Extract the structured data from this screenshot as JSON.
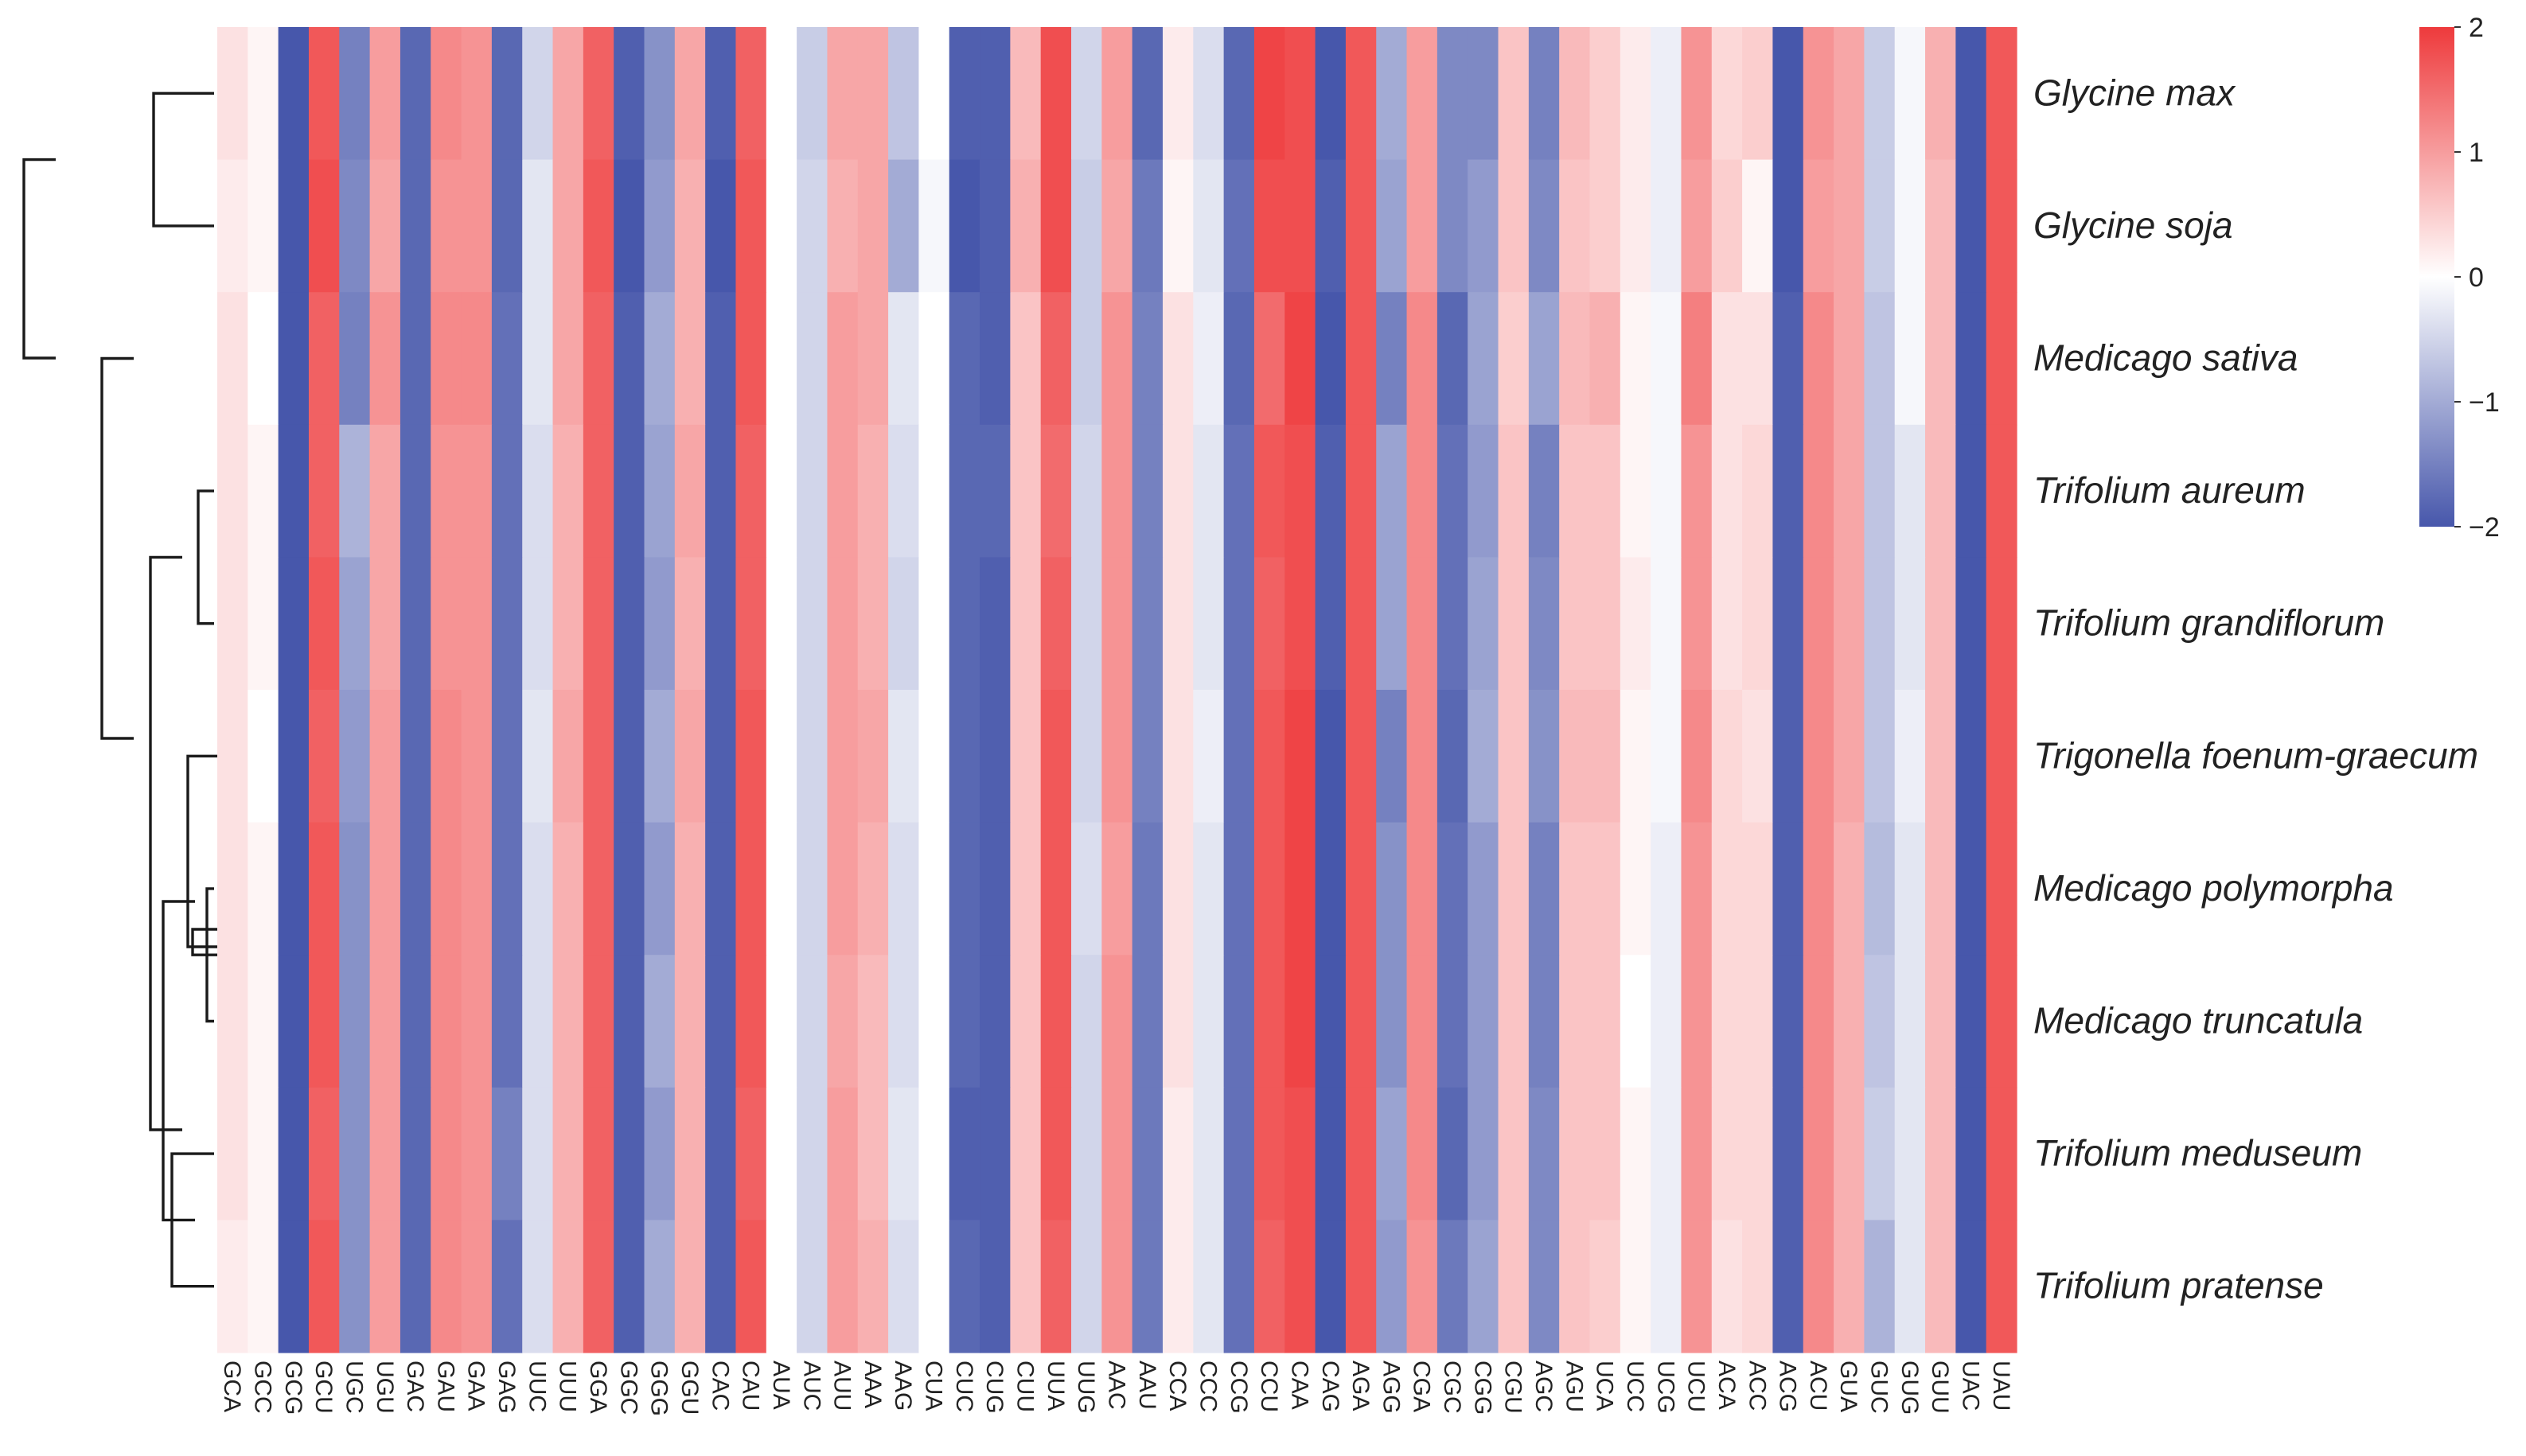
{
  "chart_data": {
    "type": "heatmap",
    "title": "",
    "xlabel": "",
    "ylabel": "",
    "columns": [
      "GCA",
      "GCC",
      "GCG",
      "GCU",
      "UGC",
      "UGU",
      "GAC",
      "GAU",
      "GAA",
      "GAG",
      "UUC",
      "UUU",
      "GGA",
      "GGC",
      "GGG",
      "GGU",
      "CAC",
      "CAU",
      "AUA",
      "AUC",
      "AUU",
      "AAA",
      "AAG",
      "CUA",
      "CUC",
      "CUG",
      "CUU",
      "UUA",
      "UUG",
      "AAC",
      "AAU",
      "CCA",
      "CCC",
      "CCG",
      "CCU",
      "CAA",
      "CAG",
      "AGA",
      "AGG",
      "CGA",
      "CGC",
      "CGG",
      "CGU",
      "AGC",
      "AGU",
      "UCA",
      "UCC",
      "UCG",
      "UCU",
      "ACA",
      "ACC",
      "ACG",
      "ACU",
      "GUA",
      "GUC",
      "GUG",
      "GUU",
      "UAC",
      "UAU"
    ],
    "rows": [
      "Glycine max",
      "Glycine soja",
      "Medicago sativa",
      "Trifolium aureum",
      "Trifolium grandiflorum",
      "Trigonella foenum-graecum",
      "Medicago polymorpha",
      "Medicago truncatula",
      "Trifolium meduseum",
      "Trifolium pratense"
    ],
    "values": [
      [
        0.3,
        0.1,
        -2.0,
        1.7,
        -1.5,
        1.0,
        -1.8,
        1.2,
        1.1,
        -1.8,
        -0.5,
        0.9,
        1.6,
        -1.9,
        -1.3,
        0.9,
        -1.9,
        1.6,
        0.0,
        -0.6,
        0.9,
        0.9,
        -0.7,
        0.0,
        -1.9,
        -1.9,
        0.7,
        1.8,
        -0.5,
        1.0,
        -1.8,
        0.2,
        -0.4,
        -1.8,
        1.9,
        1.8,
        -2.0,
        1.7,
        -1.0,
        1.0,
        -1.4,
        -1.4,
        0.6,
        -1.5,
        0.7,
        0.5,
        0.2,
        -0.2,
        1.1,
        0.4,
        0.5,
        -2.0,
        1.1,
        0.9,
        -0.6,
        -0.1,
        0.8,
        -2.0,
        1.7
      ],
      [
        0.2,
        0.1,
        -2.0,
        1.8,
        -1.4,
        0.9,
        -1.8,
        1.1,
        1.1,
        -1.8,
        -0.3,
        0.9,
        1.7,
        -2.0,
        -1.2,
        0.8,
        -2.0,
        1.7,
        0.0,
        -0.5,
        0.8,
        0.9,
        -1.0,
        -0.1,
        -2.0,
        -1.9,
        0.8,
        1.8,
        -0.6,
        0.9,
        -1.6,
        0.1,
        -0.3,
        -1.7,
        1.8,
        1.8,
        -1.9,
        1.7,
        -1.1,
        1.0,
        -1.4,
        -1.2,
        0.6,
        -1.4,
        0.6,
        0.5,
        0.2,
        -0.2,
        1.0,
        0.5,
        0.1,
        -2.0,
        1.0,
        0.9,
        -0.6,
        -0.1,
        0.7,
        -2.0,
        1.7
      ],
      [
        0.3,
        0.0,
        -2.0,
        1.6,
        -1.5,
        1.1,
        -1.8,
        1.2,
        1.2,
        -1.7,
        -0.3,
        0.9,
        1.6,
        -1.9,
        -1.0,
        0.8,
        -1.9,
        1.7,
        0.0,
        -0.5,
        1.0,
        0.9,
        -0.3,
        0.0,
        -1.8,
        -1.9,
        0.6,
        1.6,
        -0.6,
        1.1,
        -1.5,
        0.3,
        -0.2,
        -1.8,
        1.5,
        1.9,
        -2.0,
        1.7,
        -1.5,
        1.2,
        -1.8,
        -1.1,
        0.5,
        -1.1,
        0.7,
        0.8,
        0.1,
        -0.1,
        1.3,
        0.3,
        0.3,
        -1.9,
        1.2,
        0.9,
        -0.7,
        -0.1,
        0.7,
        -2.0,
        1.7
      ],
      [
        0.3,
        0.1,
        -2.0,
        1.6,
        -0.9,
        0.9,
        -1.8,
        1.1,
        1.1,
        -1.7,
        -0.4,
        0.8,
        1.6,
        -1.9,
        -1.1,
        0.9,
        -1.9,
        1.6,
        0.0,
        -0.5,
        1.0,
        0.8,
        -0.4,
        0.0,
        -1.8,
        -1.8,
        0.6,
        1.5,
        -0.5,
        1.1,
        -1.5,
        0.3,
        -0.3,
        -1.7,
        1.7,
        1.8,
        -1.9,
        1.7,
        -1.1,
        1.2,
        -1.7,
        -1.2,
        0.6,
        -1.5,
        0.6,
        0.6,
        0.1,
        -0.1,
        1.1,
        0.3,
        0.4,
        -1.9,
        1.2,
        0.9,
        -0.7,
        -0.3,
        0.7,
        -2.0,
        1.7
      ],
      [
        0.3,
        0.1,
        -2.0,
        1.7,
        -1.1,
        0.9,
        -1.8,
        1.1,
        1.1,
        -1.7,
        -0.4,
        0.8,
        1.6,
        -1.9,
        -1.2,
        0.8,
        -1.9,
        1.6,
        0.0,
        -0.5,
        1.0,
        0.8,
        -0.5,
        0.0,
        -1.8,
        -1.9,
        0.6,
        1.6,
        -0.5,
        1.1,
        -1.5,
        0.3,
        -0.3,
        -1.7,
        1.6,
        1.8,
        -1.9,
        1.7,
        -1.1,
        1.2,
        -1.7,
        -1.1,
        0.6,
        -1.4,
        0.6,
        0.6,
        0.2,
        -0.1,
        1.1,
        0.3,
        0.4,
        -1.9,
        1.2,
        0.9,
        -0.7,
        -0.3,
        0.7,
        -2.0,
        1.7
      ],
      [
        0.3,
        0.0,
        -2.0,
        1.6,
        -1.2,
        1.0,
        -1.8,
        1.2,
        1.1,
        -1.7,
        -0.3,
        0.9,
        1.6,
        -1.9,
        -1.0,
        0.9,
        -1.9,
        1.7,
        0.0,
        -0.5,
        1.0,
        0.9,
        -0.3,
        0.0,
        -1.8,
        -1.9,
        0.6,
        1.7,
        -0.5,
        1.1,
        -1.5,
        0.3,
        -0.2,
        -1.7,
        1.7,
        1.9,
        -2.0,
        1.7,
        -1.5,
        1.2,
        -1.8,
        -1.0,
        0.6,
        -1.3,
        0.7,
        0.7,
        0.1,
        -0.1,
        1.2,
        0.4,
        0.3,
        -1.9,
        1.2,
        0.9,
        -0.7,
        -0.2,
        0.7,
        -2.0,
        1.7
      ],
      [
        0.3,
        0.1,
        -2.0,
        1.7,
        -1.3,
        1.0,
        -1.8,
        1.2,
        1.1,
        -1.7,
        -0.4,
        0.8,
        1.6,
        -1.9,
        -1.2,
        0.8,
        -1.9,
        1.7,
        0.0,
        -0.5,
        1.0,
        0.8,
        -0.4,
        0.0,
        -1.8,
        -1.9,
        0.6,
        1.7,
        -0.4,
        1.0,
        -1.6,
        0.3,
        -0.3,
        -1.7,
        1.7,
        1.9,
        -2.0,
        1.7,
        -1.3,
        1.2,
        -1.7,
        -1.2,
        0.6,
        -1.5,
        0.6,
        0.6,
        0.1,
        -0.2,
        1.1,
        0.4,
        0.4,
        -1.9,
        1.2,
        0.8,
        -0.8,
        -0.3,
        0.7,
        -2.0,
        1.7
      ],
      [
        0.3,
        0.1,
        -2.0,
        1.7,
        -1.3,
        1.0,
        -1.8,
        1.2,
        1.1,
        -1.7,
        -0.4,
        0.8,
        1.6,
        -1.9,
        -1.0,
        0.8,
        -1.9,
        1.7,
        0.0,
        -0.5,
        0.9,
        0.7,
        -0.4,
        0.0,
        -1.8,
        -1.9,
        0.6,
        1.7,
        -0.5,
        1.1,
        -1.6,
        0.3,
        -0.3,
        -1.7,
        1.7,
        1.9,
        -2.0,
        1.7,
        -1.3,
        1.2,
        -1.7,
        -1.2,
        0.6,
        -1.5,
        0.6,
        0.6,
        0.0,
        -0.2,
        1.1,
        0.4,
        0.4,
        -1.9,
        1.2,
        0.8,
        -0.7,
        -0.3,
        0.7,
        -2.0,
        1.7
      ],
      [
        0.3,
        0.1,
        -2.0,
        1.6,
        -1.3,
        1.0,
        -1.8,
        1.2,
        1.1,
        -1.5,
        -0.4,
        0.8,
        1.6,
        -1.9,
        -1.2,
        0.8,
        -1.9,
        1.6,
        0.0,
        -0.5,
        1.0,
        0.7,
        -0.3,
        0.0,
        -1.9,
        -1.9,
        0.6,
        1.7,
        -0.5,
        1.1,
        -1.6,
        0.2,
        -0.3,
        -1.7,
        1.7,
        1.8,
        -2.0,
        1.7,
        -1.1,
        1.2,
        -1.8,
        -1.2,
        0.6,
        -1.4,
        0.6,
        0.6,
        0.1,
        -0.2,
        1.1,
        0.4,
        0.4,
        -1.9,
        1.2,
        0.8,
        -0.6,
        -0.3,
        0.7,
        -2.0,
        1.7
      ],
      [
        0.2,
        0.1,
        -2.0,
        1.7,
        -1.3,
        1.0,
        -1.8,
        1.2,
        1.1,
        -1.7,
        -0.4,
        0.8,
        1.6,
        -1.9,
        -1.0,
        0.8,
        -1.9,
        1.7,
        0.0,
        -0.5,
        1.0,
        0.8,
        -0.4,
        0.0,
        -1.8,
        -1.9,
        0.6,
        1.6,
        -0.5,
        1.1,
        -1.6,
        0.2,
        -0.3,
        -1.7,
        1.6,
        1.8,
        -2.0,
        1.7,
        -1.2,
        1.1,
        -1.6,
        -1.1,
        0.6,
        -1.4,
        0.6,
        0.5,
        0.1,
        -0.2,
        1.1,
        0.3,
        0.4,
        -1.9,
        1.2,
        0.8,
        -0.9,
        -0.3,
        0.7,
        -2.0,
        1.7
      ]
    ],
    "colorscale": {
      "min": -2,
      "max": 2,
      "low": "#4757ab",
      "mid": "#ffffff",
      "high": "#ee3a3c"
    },
    "legend": {
      "position": "top-right",
      "ticks": [
        "2",
        "1",
        "0",
        "−1",
        "−2"
      ],
      "tick_values": [
        2,
        1,
        0,
        -1,
        -2
      ]
    },
    "dendrogram": {
      "side": "left",
      "type": "row-clustering"
    }
  }
}
